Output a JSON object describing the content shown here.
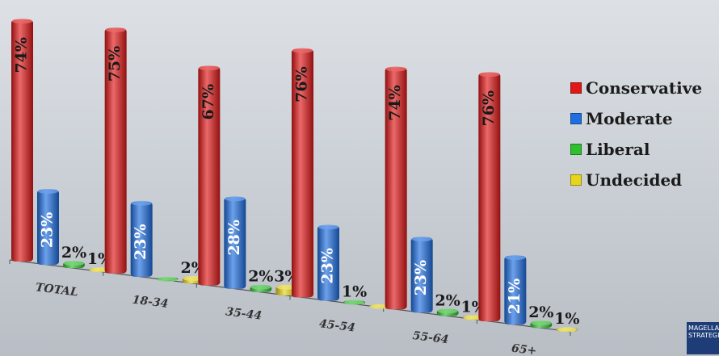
{
  "chart_data": {
    "type": "bar",
    "categories": [
      "TOTAL",
      "18-34",
      "35-44",
      "45-54",
      "55-64",
      "65+"
    ],
    "series": [
      {
        "name": "Conservative",
        "color": "#e01818",
        "values": [
          74,
          75,
          67,
          76,
          74,
          76
        ],
        "labels": [
          "74%",
          "75%",
          "67%",
          "76%",
          "74%",
          "76%"
        ]
      },
      {
        "name": "Moderate",
        "color": "#1f6fe0",
        "values": [
          23,
          23,
          28,
          23,
          23,
          21
        ],
        "labels": [
          "23%",
          "23%",
          "28%",
          "23%",
          "23%",
          "21%"
        ]
      },
      {
        "name": "Liberal",
        "color": "#2fbf2f",
        "values": [
          2,
          0,
          2,
          1,
          2,
          2
        ],
        "labels": [
          "2%",
          "",
          "2%",
          "1%",
          "2%",
          "2%"
        ]
      },
      {
        "name": "Undecided",
        "color": "#e6d51a",
        "values": [
          1,
          2,
          3,
          0,
          1,
          1
        ],
        "labels": [
          "1%",
          "2%",
          "3%",
          "",
          "1%",
          "1%"
        ]
      }
    ],
    "legend_position": "right"
  },
  "logo_text": "MAGELLAN STRATEGIES"
}
